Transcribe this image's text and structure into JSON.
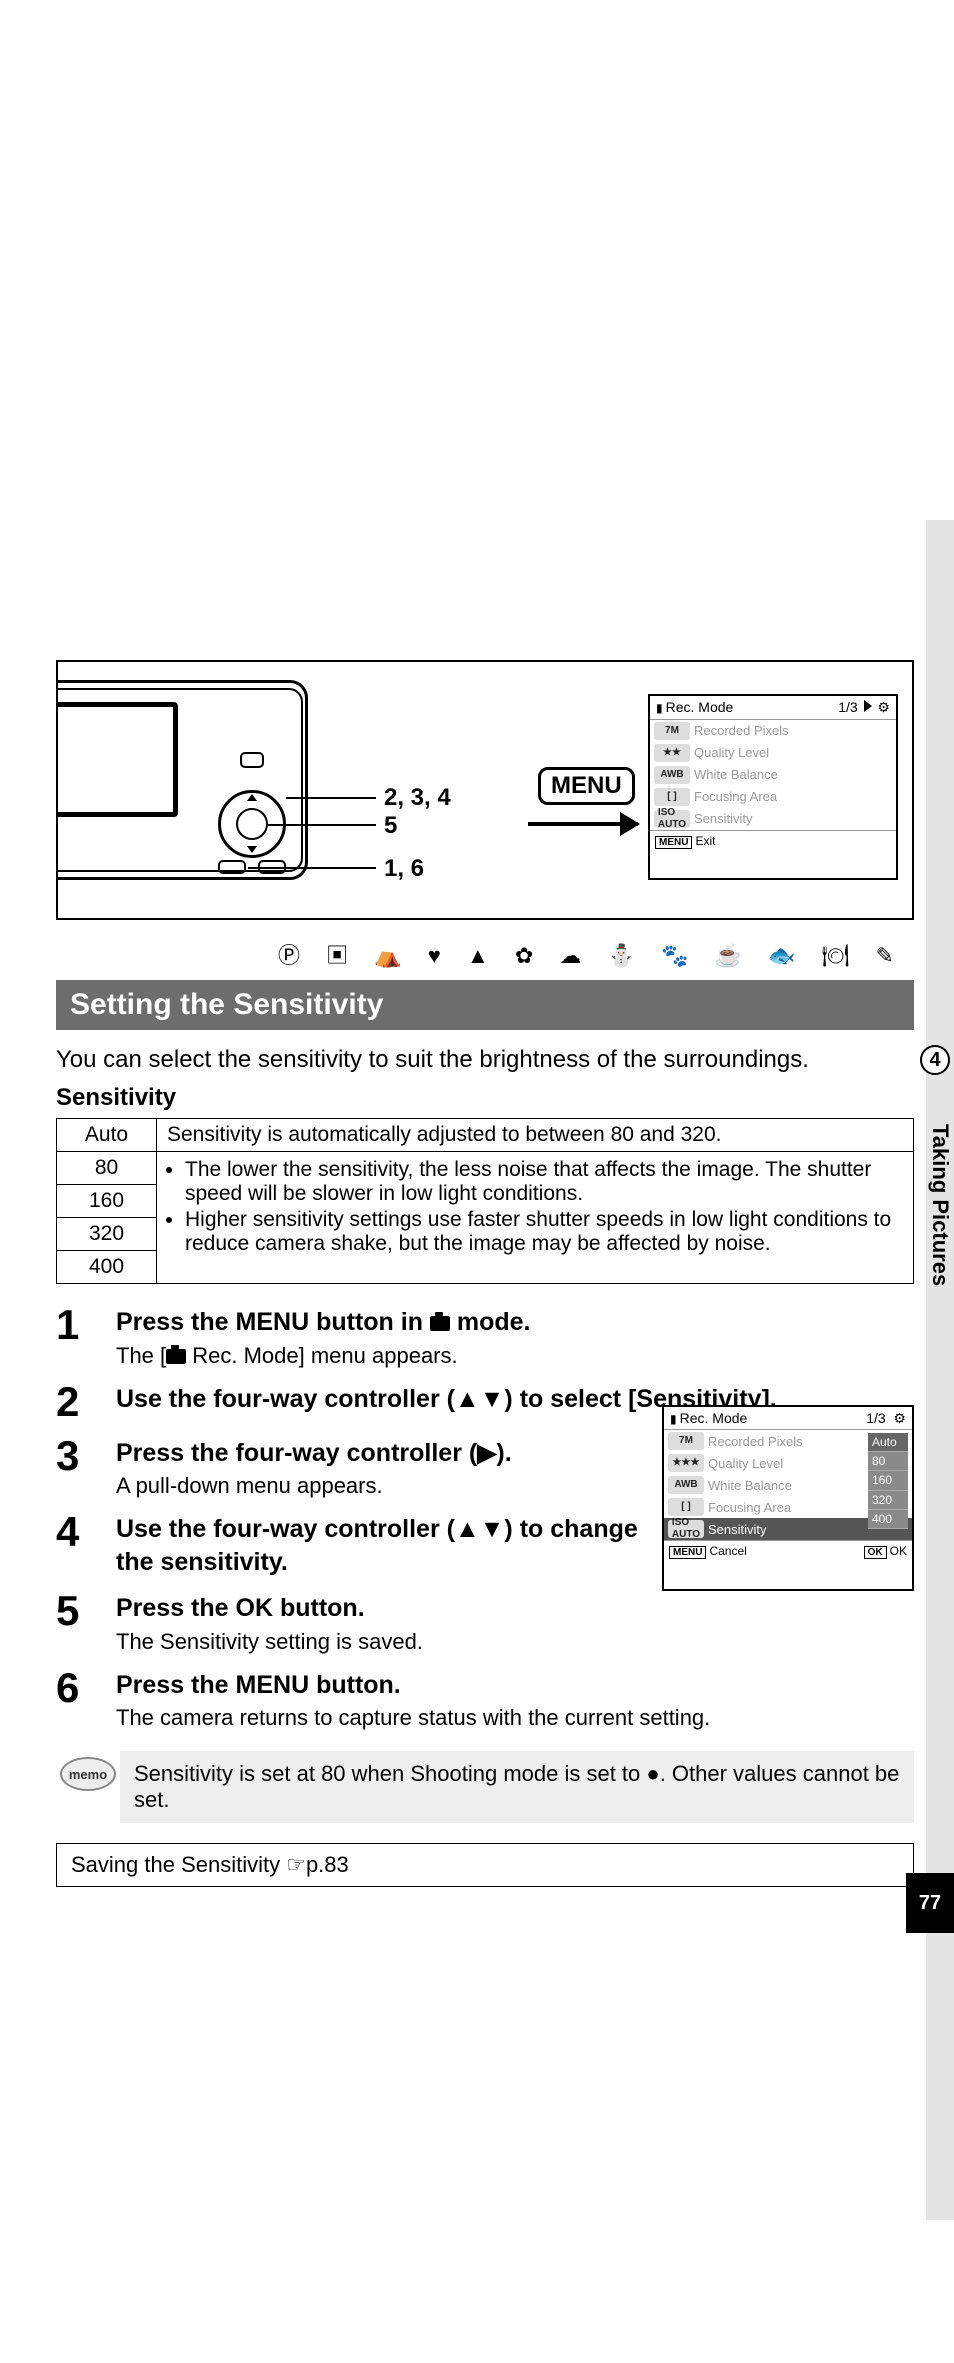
{
  "chapter": {
    "number": "4",
    "label": "Taking Pictures"
  },
  "page_number": "77",
  "diagram": {
    "callouts": {
      "a": "2, 3, 4",
      "b": "5",
      "c": "1, 6"
    },
    "menu_label": "MENU"
  },
  "lcd1": {
    "title": "Rec. Mode",
    "page": "1/3",
    "rows": [
      {
        "pill": "7M",
        "label": "Recorded Pixels"
      },
      {
        "pill": "★★",
        "label": "Quality Level"
      },
      {
        "pill": "AWB",
        "label": "White Balance"
      },
      {
        "pill": "[ ]",
        "label": "Focusing Area"
      },
      {
        "pill": "ISO\nAUTO",
        "label": "Sensitivity"
      }
    ],
    "footer_left_btn": "MENU",
    "footer_left": "Exit"
  },
  "lcd2": {
    "title": "Rec. Mode",
    "page": "1/3",
    "rows": [
      {
        "pill": "7M",
        "label": "Recorded Pixels"
      },
      {
        "pill": "★★★",
        "label": "Quality Level"
      },
      {
        "pill": "AWB",
        "label": "White Balance"
      },
      {
        "pill": "[ ]",
        "label": "Focusing Area"
      },
      {
        "pill": "ISO\nAUTO",
        "label": "Sensitivity",
        "hl": true
      }
    ],
    "dropdown": [
      "Auto",
      "80",
      "160",
      "320",
      "400"
    ],
    "footer_left_btn": "MENU",
    "footer_left": "Cancel",
    "footer_right_btn": "OK",
    "footer_right": "OK"
  },
  "mode_icons": "Ⓟ ▣ ⛺ ♥ ▲ ✿ ☁ ⛄ 🐾 ☕ 🐟 🍽 ✎",
  "heading": "Setting the Sensitivity",
  "intro": "You can select the sensitivity to suit the brightness of the surroundings.",
  "sub_heading": "Sensitivity",
  "table": {
    "auto_label": "Auto",
    "auto_text": "Sensitivity is automatically adjusted to between 80 and 320.",
    "vals": [
      "80",
      "160",
      "320",
      "400"
    ],
    "bullets": [
      "The lower the sensitivity, the less noise that affects the image. The shutter speed will be slower in low light conditions.",
      "Higher sensitivity settings use faster shutter speeds in low light conditions to reduce camera shake, but the image may be affected by noise."
    ]
  },
  "steps": {
    "s1_title_a": "Press the ",
    "s1_title_b": " button in ",
    "s1_title_c": " mode.",
    "s1_sub_a": "The [",
    "s1_sub_b": " Rec. Mode] menu appears.",
    "s2_title": "Use the four-way controller (▲▼) to select [Sensitivity].",
    "s3_title": "Press the four-way controller (▶).",
    "s3_sub": "A pull-down menu appears.",
    "s4_title": "Use the four-way controller (▲▼) to change the sensitivity.",
    "s5_title_a": "Press the ",
    "s5_title_b": " button.",
    "s5_sub": "The Sensitivity setting is saved.",
    "s6_title_a": "Press the ",
    "s6_title_b": " button.",
    "s6_sub": "The camera returns to capture status with the current setting."
  },
  "memo": {
    "badge": "memo",
    "text_a": "Sensitivity is set at 80 when Shooting mode is set to ",
    "text_b": ". Other values cannot be set."
  },
  "ref": "Saving the Sensitivity ☞p.83"
}
